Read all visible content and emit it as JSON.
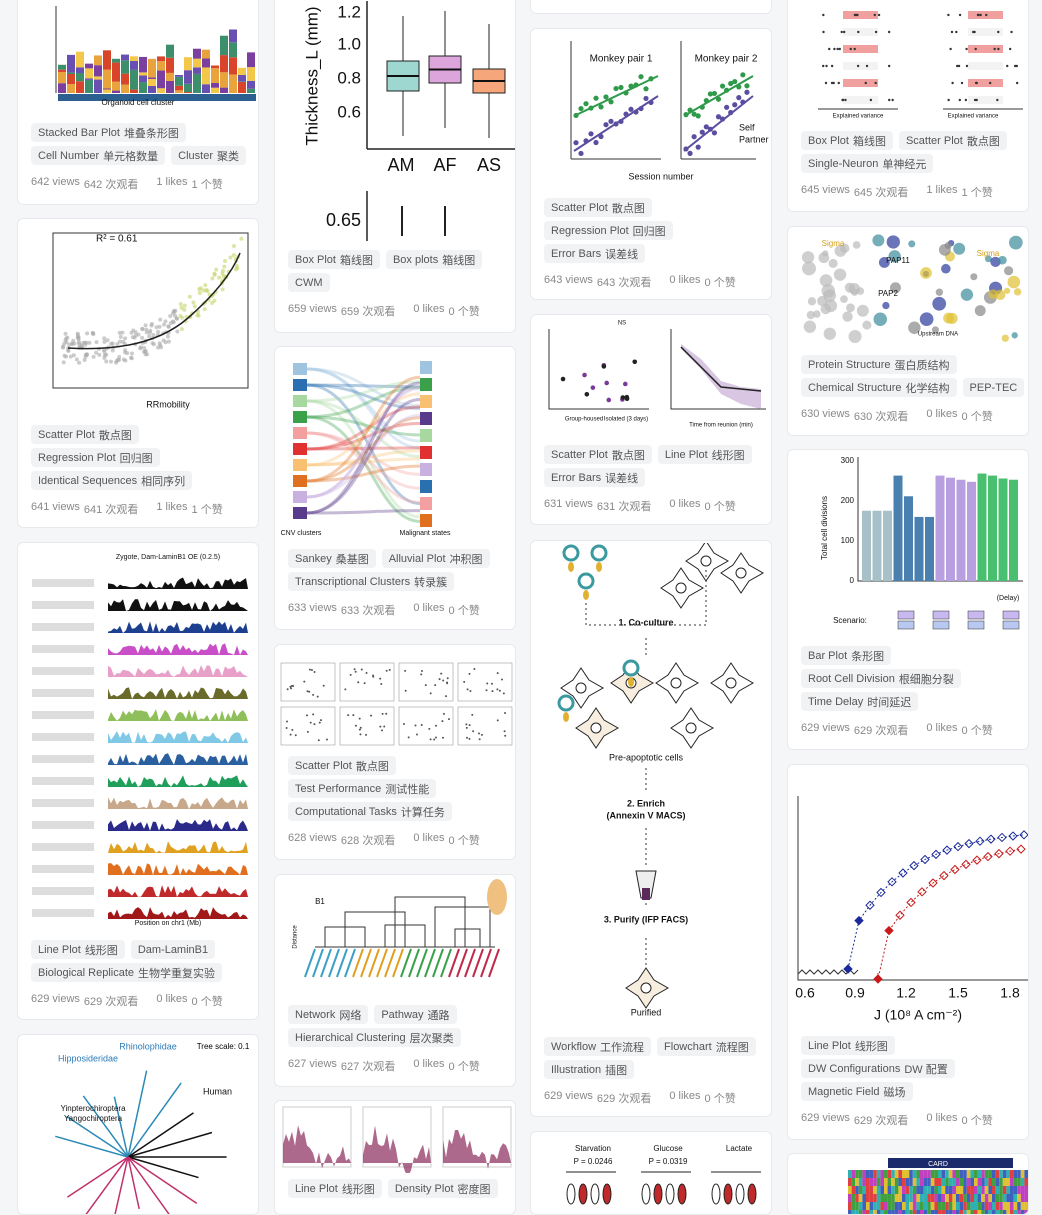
{
  "columns": [
    {
      "cards": [
        {
          "figure_text": [
            "Organoid cell cluster"
          ],
          "tags": [
            [
              {
                "en": "Stacked Bar Plot",
                "cn": "堆叠条形图"
              }
            ],
            [
              {
                "en": "Cell Number",
                "cn": "单元格数量"
              },
              {
                "en": "Cluster",
                "cn": "聚类"
              }
            ]
          ],
          "stats": {
            "views": "642 views",
            "views_cn": "642 次观看",
            "likes": "1 likes",
            "likes_cn": "1 个赞"
          }
        },
        {
          "figure_text": [
            "R² = 0.61",
            "RRmobility"
          ],
          "tags": [
            [
              {
                "en": "Scatter Plot",
                "cn": "散点图"
              }
            ],
            [
              {
                "en": "Regression Plot",
                "cn": "回归图"
              }
            ],
            [
              {
                "en": "Identical Sequences",
                "cn": "相同序列"
              }
            ]
          ],
          "stats": {
            "views": "641 views",
            "views_cn": "641 次观看",
            "likes": "1 likes",
            "likes_cn": "1 个赞"
          }
        },
        {
          "figure_text": [
            "Zygote, Dam-LaminB1 OE (0.2.5)",
            "Position on chr1 (Mb)"
          ],
          "tags": [
            [
              {
                "en": "Line Plot",
                "cn": "线形图"
              },
              {
                "en": "Dam-LaminB1"
              }
            ],
            [
              {
                "en": "Biological Replicate",
                "cn": "生物学重复实验"
              }
            ]
          ],
          "stats": {
            "views": "629 views",
            "views_cn": "629 次观看",
            "likes": "0 likes",
            "likes_cn": "0 个赞"
          }
        },
        {
          "figure_text": [
            "Tree scale: 0.1",
            "Rhinolophidae",
            "Hipposideridae",
            "Human",
            "Yinpterochiroptera",
            "Yangochiroptera"
          ]
        }
      ]
    },
    {
      "cards": [
        {
          "figure_text": [
            "Thickness_L (mm)",
            "1.2",
            "1.0",
            "0.8",
            "0.6",
            "AM",
            "AF",
            "AS",
            "0.65"
          ],
          "tags": [
            [
              {
                "en": "Box Plot",
                "cn": "箱线图"
              },
              {
                "en": "Box plots",
                "cn": "箱线图"
              }
            ],
            [
              {
                "en": "CWM"
              }
            ]
          ],
          "stats": {
            "views": "659 views",
            "views_cn": "659 次观看",
            "likes": "0 likes",
            "likes_cn": "0 个赞"
          }
        },
        {
          "figure_text": [
            "CNV clusters",
            "Malignant states"
          ],
          "tags": [
            [
              {
                "en": "Sankey",
                "cn": "桑基图"
              },
              {
                "en": "Alluvial Plot",
                "cn": "冲积图"
              }
            ],
            [
              {
                "en": "Transcriptional Clusters",
                "cn": "转录簇"
              }
            ]
          ],
          "stats": {
            "views": "633 views",
            "views_cn": "633 次观看",
            "likes": "0 likes",
            "likes_cn": "0 个赞"
          }
        },
        {
          "tags": [
            [
              {
                "en": "Scatter Plot",
                "cn": "散点图"
              }
            ],
            [
              {
                "en": "Test Performance",
                "cn": "测试性能"
              }
            ],
            [
              {
                "en": "Computational Tasks",
                "cn": "计算任务"
              }
            ]
          ],
          "stats": {
            "views": "628 views",
            "views_cn": "628 次观看",
            "likes": "0 likes",
            "likes_cn": "0 个赞"
          }
        },
        {
          "figure_text": [
            "B1",
            "Distance"
          ],
          "tags": [
            [
              {
                "en": "Network",
                "cn": "网络"
              },
              {
                "en": "Pathway",
                "cn": "通路"
              }
            ],
            [
              {
                "en": "Hierarchical Clustering",
                "cn": "层次聚类"
              }
            ]
          ],
          "stats": {
            "views": "627 views",
            "views_cn": "627 次观看",
            "likes": "0 likes",
            "likes_cn": "0 个赞"
          }
        },
        {
          "tags": [
            [
              {
                "en": "Line Plot",
                "cn": "线形图"
              },
              {
                "en": "Density Plot",
                "cn": "密度图"
              }
            ]
          ]
        }
      ]
    },
    {
      "cards": [
        {
          "figure_text": [
            "Monkey pair 1",
            "Monkey pair 2",
            "Session number",
            "Self",
            "Partner"
          ],
          "tags": [
            [
              {
                "en": "Scatter Plot",
                "cn": "散点图"
              }
            ],
            [
              {
                "en": "Regression Plot",
                "cn": "回归图"
              }
            ],
            [
              {
                "en": "Error Bars",
                "cn": "误差线"
              }
            ]
          ],
          "stats": {
            "views": "643 views",
            "views_cn": "643 次观看",
            "likes": "0 likes",
            "likes_cn": "0 个赞"
          }
        },
        {
          "figure_text": [
            "Group-housed",
            "Isolated (3 days)",
            "Time from reunion (min)",
            "NS"
          ],
          "tags": [
            [
              {
                "en": "Scatter Plot",
                "cn": "散点图"
              },
              {
                "en": "Line Plot",
                "cn": "线形图"
              }
            ],
            [
              {
                "en": "Error Bars",
                "cn": "误差线"
              }
            ]
          ],
          "stats": {
            "views": "631 views",
            "views_cn": "631 次观看",
            "likes": "0 likes",
            "likes_cn": "0 个赞"
          }
        },
        {
          "figure_text": [
            "1. Co-culture",
            "Pre-apoptotic cells",
            "2. Enrich",
            "(Annexin V MACS)",
            "3. Purify (IFP FACS)",
            "Purified"
          ],
          "tags": [
            [
              {
                "en": "Workflow",
                "cn": "工作流程"
              },
              {
                "en": "Flowchart",
                "cn": "流程图"
              }
            ],
            [
              {
                "en": "Illustration",
                "cn": "插图"
              }
            ]
          ],
          "stats": {
            "views": "629 views",
            "views_cn": "629 次观看",
            "likes": "0 likes",
            "likes_cn": "0 个赞"
          }
        },
        {
          "figure_text": [
            "Starvation",
            "Glucose",
            "Lactate",
            "P = 0.0246",
            "P = 0.0319"
          ]
        }
      ]
    },
    {
      "cards": [
        {
          "figure_text": [
            "Explained variance",
            "Explained variance"
          ],
          "tags": [
            [
              {
                "en": "Box Plot",
                "cn": "箱线图"
              },
              {
                "en": "Scatter Plot",
                "cn": "散点图"
              }
            ],
            [
              {
                "en": "Single-Neuron",
                "cn": "单神经元"
              }
            ]
          ],
          "stats": {
            "views": "645 views",
            "views_cn": "645 次观看",
            "likes": "1 likes",
            "likes_cn": "1 个赞"
          }
        },
        {
          "figure_text": [
            "Sigma",
            "PAP11",
            "PAP2",
            "Sigma",
            "Upstream DNA"
          ],
          "tags": [
            [
              {
                "en": "Protein Structure",
                "cn": "蛋白质结构"
              }
            ],
            [
              {
                "en": "Chemical Structure",
                "cn": "化学结构"
              },
              {
                "en": "PEP-TEC"
              }
            ]
          ],
          "stats": {
            "views": "630 views",
            "views_cn": "630 次观看",
            "likes": "0 likes",
            "likes_cn": "0 个赞"
          }
        },
        {
          "figure_text": [
            "Total cell divisions",
            "300",
            "200",
            "100",
            "0",
            "Scenario:",
            "(Delay)"
          ],
          "tags": [
            [
              {
                "en": "Bar Plot",
                "cn": "条形图"
              }
            ],
            [
              {
                "en": "Root Cell Division",
                "cn": "根细胞分裂"
              }
            ],
            [
              {
                "en": "Time Delay",
                "cn": "时间延迟"
              }
            ]
          ],
          "stats": {
            "views": "629 views",
            "views_cn": "629 次观看",
            "likes": "0 likes",
            "likes_cn": "0 个赞"
          }
        },
        {
          "figure_text": [
            "0.6",
            "0.9",
            "1.2",
            "1.5",
            "1.8",
            "J (10⁸ A cm⁻²)"
          ],
          "tags": [
            [
              {
                "en": "Line Plot",
                "cn": "线形图"
              }
            ],
            [
              {
                "en": "DW Configurations",
                "cn": "DW 配置"
              }
            ],
            [
              {
                "en": "Magnetic Field",
                "cn": "磁场"
              }
            ]
          ],
          "stats": {
            "views": "629 views",
            "views_cn": "629 次观看",
            "likes": "0 likes",
            "likes_cn": "0 个赞"
          }
        },
        {
          "figure_text": [
            "CARD"
          ]
        }
      ]
    }
  ]
}
